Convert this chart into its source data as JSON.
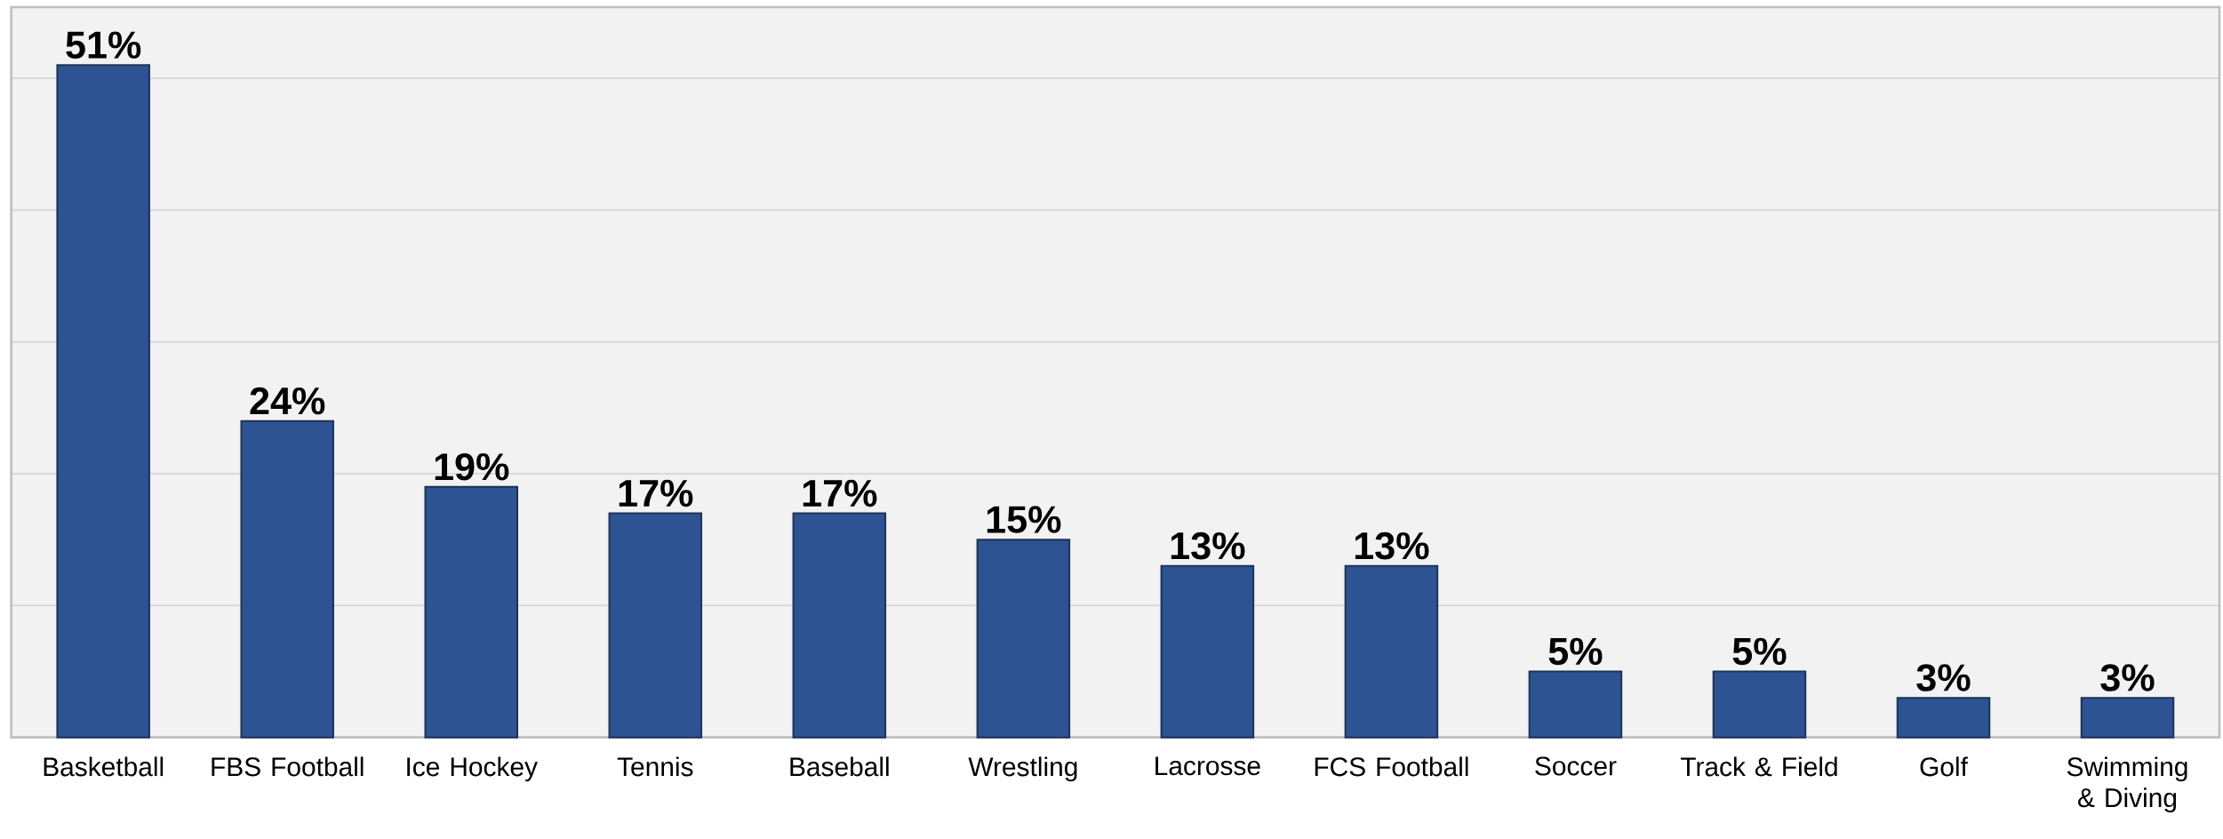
{
  "chart_data": {
    "type": "bar",
    "categories": [
      "Basketball",
      "FBS Football",
      "Ice Hockey",
      "Tennis",
      "Baseball",
      "Wrestling",
      "Lacrosse",
      "FCS Football",
      "Soccer",
      "Track & Field",
      "Golf",
      "Swimming & Diving"
    ],
    "values": [
      51,
      24,
      19,
      17,
      17,
      15,
      13,
      13,
      5,
      5,
      3,
      3
    ],
    "value_labels": [
      "51%",
      "24%",
      "19%",
      "17%",
      "17%",
      "15%",
      "13%",
      "13%",
      "5%",
      "5%",
      "3%",
      "3%"
    ],
    "color": "#2e5393",
    "ylim": [
      0,
      55.4
    ],
    "yticks": [
      {
        "value": 0,
        "label": null
      },
      {
        "value": 10,
        "label": null
      },
      {
        "value": 20,
        "label": null
      },
      {
        "value": 30,
        "label": null
      },
      {
        "value": 40,
        "label": null
      },
      {
        "value": 50,
        "label": null
      }
    ],
    "grid": "y",
    "tick_labels": "x"
  }
}
